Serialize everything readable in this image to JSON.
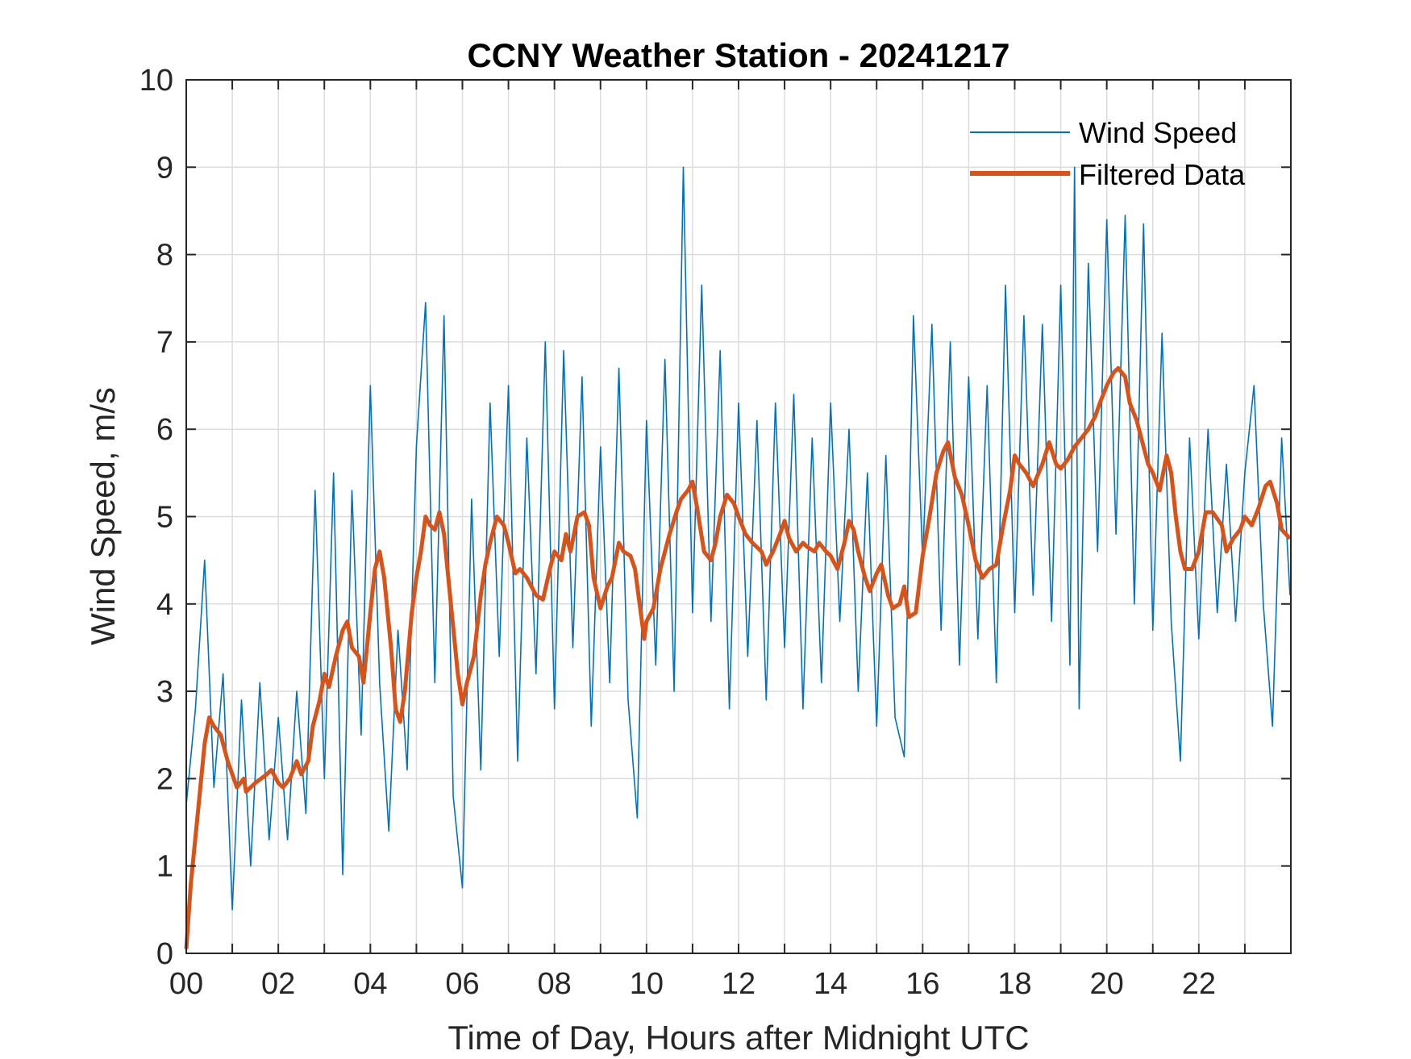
{
  "chart_data": {
    "type": "line",
    "title": "CCNY Weather Station - 20241217",
    "xlabel": "Time of Day, Hours after Midnight UTC",
    "ylabel": "Wind Speed, m/s",
    "xlim": [
      0,
      24
    ],
    "ylim": [
      0,
      10
    ],
    "grid": true,
    "legend_position": "top-right",
    "x_ticks": [
      0,
      2,
      4,
      6,
      8,
      10,
      12,
      14,
      16,
      18,
      20,
      22
    ],
    "x_tick_labels": [
      "00",
      "02",
      "04",
      "06",
      "08",
      "10",
      "12",
      "14",
      "16",
      "18",
      "20",
      "22"
    ],
    "y_ticks": [
      0,
      1,
      2,
      3,
      4,
      5,
      6,
      7,
      8,
      9,
      10
    ],
    "y_tick_labels": [
      "0",
      "1",
      "2",
      "3",
      "4",
      "5",
      "6",
      "7",
      "8",
      "9",
      "10"
    ],
    "series": [
      {
        "name": "Wind Speed",
        "color": "#0072BD",
        "x": [
          0,
          0.2,
          0.4,
          0.6,
          0.8,
          1.0,
          1.2,
          1.4,
          1.6,
          1.8,
          2.0,
          2.2,
          2.4,
          2.6,
          2.8,
          3.0,
          3.2,
          3.4,
          3.6,
          3.8,
          4.0,
          4.2,
          4.4,
          4.6,
          4.8,
          5.0,
          5.2,
          5.4,
          5.6,
          5.8,
          6.0,
          6.2,
          6.4,
          6.6,
          6.8,
          7.0,
          7.2,
          7.4,
          7.6,
          7.8,
          8.0,
          8.2,
          8.4,
          8.6,
          8.8,
          9.0,
          9.2,
          9.4,
          9.6,
          9.8,
          10.0,
          10.2,
          10.4,
          10.6,
          10.8,
          11.0,
          11.2,
          11.4,
          11.6,
          11.8,
          12.0,
          12.2,
          12.4,
          12.6,
          12.8,
          13.0,
          13.2,
          13.4,
          13.6,
          13.8,
          14.0,
          14.2,
          14.4,
          14.6,
          14.8,
          15.0,
          15.2,
          15.4,
          15.6,
          15.8,
          16.0,
          16.2,
          16.4,
          16.6,
          16.8,
          17.0,
          17.2,
          17.4,
          17.6,
          17.8,
          18.0,
          18.2,
          18.4,
          18.6,
          18.8,
          19.0,
          19.2,
          19.3,
          19.4,
          19.6,
          19.8,
          20.0,
          20.2,
          20.4,
          20.6,
          20.8,
          21.0,
          21.2,
          21.4,
          21.6,
          21.8,
          22.0,
          22.2,
          22.4,
          22.6,
          22.8,
          23.0,
          23.2,
          23.4,
          23.6,
          23.8,
          23.98
        ],
        "values": [
          1.7,
          2.8,
          4.5,
          1.9,
          3.2,
          0.5,
          2.9,
          1.0,
          3.1,
          1.3,
          2.7,
          1.3,
          3.0,
          1.6,
          5.3,
          2.0,
          5.5,
          0.9,
          5.3,
          2.5,
          6.5,
          3.1,
          1.4,
          3.7,
          2.1,
          5.8,
          7.45,
          3.1,
          7.3,
          1.8,
          0.75,
          5.2,
          2.1,
          6.3,
          3.4,
          6.5,
          2.2,
          5.9,
          3.2,
          7.0,
          2.8,
          6.9,
          3.5,
          6.6,
          2.6,
          5.8,
          3.1,
          6.7,
          2.9,
          1.55,
          6.1,
          3.3,
          6.8,
          3.0,
          9.0,
          3.9,
          7.65,
          3.8,
          6.9,
          2.8,
          6.3,
          3.4,
          6.1,
          2.9,
          6.3,
          3.5,
          6.4,
          2.8,
          5.9,
          3.1,
          6.3,
          3.8,
          6.0,
          3.0,
          5.5,
          2.6,
          5.7,
          2.7,
          2.25,
          7.3,
          4.5,
          7.2,
          3.7,
          7.0,
          3.3,
          6.6,
          3.6,
          6.5,
          3.1,
          7.65,
          3.9,
          7.3,
          4.1,
          7.2,
          3.8,
          7.65,
          3.3,
          9.0,
          2.8,
          7.9,
          4.6,
          8.4,
          4.8,
          8.45,
          4.0,
          8.35,
          3.7,
          7.1,
          3.8,
          2.2,
          5.9,
          3.6,
          6.0,
          3.9,
          5.6,
          3.8,
          5.5,
          6.5,
          4.0,
          2.6,
          5.9,
          4.1
        ]
      },
      {
        "name": "Filtered Data",
        "color": "#D95319",
        "x": [
          0,
          0.1,
          0.25,
          0.4,
          0.5,
          0.6,
          0.75,
          0.9,
          1.0,
          1.1,
          1.25,
          1.3,
          1.5,
          1.75,
          1.85,
          2.0,
          2.1,
          2.25,
          2.4,
          2.5,
          2.65,
          2.75,
          2.9,
          3.0,
          3.1,
          3.25,
          3.4,
          3.5,
          3.6,
          3.75,
          3.85,
          4.0,
          4.1,
          4.2,
          4.3,
          4.45,
          4.55,
          4.65,
          4.75,
          4.9,
          5.0,
          5.1,
          5.2,
          5.3,
          5.4,
          5.5,
          5.6,
          5.75,
          5.9,
          6.0,
          6.1,
          6.25,
          6.4,
          6.5,
          6.6,
          6.75,
          6.9,
          7.0,
          7.15,
          7.25,
          7.4,
          7.5,
          7.6,
          7.75,
          7.9,
          8.0,
          8.15,
          8.25,
          8.35,
          8.5,
          8.65,
          8.75,
          8.85,
          9.0,
          9.15,
          9.25,
          9.4,
          9.5,
          9.65,
          9.75,
          9.85,
          9.95,
          10.0,
          10.15,
          10.3,
          10.5,
          10.65,
          10.75,
          10.9,
          11.0,
          11.1,
          11.25,
          11.4,
          11.5,
          11.6,
          11.75,
          11.9,
          12.0,
          12.15,
          12.3,
          12.5,
          12.6,
          12.75,
          12.9,
          13.0,
          13.1,
          13.25,
          13.4,
          13.5,
          13.65,
          13.75,
          13.9,
          14.0,
          14.15,
          14.3,
          14.4,
          14.5,
          14.6,
          14.75,
          14.85,
          15.0,
          15.1,
          15.25,
          15.35,
          15.5,
          15.6,
          15.7,
          15.85,
          16.0,
          16.15,
          16.3,
          16.45,
          16.55,
          16.7,
          16.85,
          17.0,
          17.15,
          17.3,
          17.45,
          17.6,
          17.75,
          17.9,
          18.0,
          18.1,
          18.25,
          18.4,
          18.6,
          18.75,
          18.9,
          19.0,
          19.15,
          19.3,
          19.45,
          19.6,
          19.75,
          19.85,
          20.0,
          20.15,
          20.25,
          20.4,
          20.5,
          20.65,
          20.8,
          20.9,
          21.0,
          21.15,
          21.3,
          21.4,
          21.5,
          21.6,
          21.7,
          21.85,
          22.0,
          22.15,
          22.3,
          22.5,
          22.6,
          22.75,
          22.9,
          23.0,
          23.15,
          23.3,
          23.45,
          23.55,
          23.7,
          23.8,
          23.98
        ],
        "values": [
          0.05,
          0.8,
          1.6,
          2.4,
          2.7,
          2.6,
          2.5,
          2.2,
          2.05,
          1.9,
          2.0,
          1.85,
          1.95,
          2.05,
          2.1,
          1.95,
          1.9,
          2.0,
          2.2,
          2.05,
          2.2,
          2.6,
          2.9,
          3.2,
          3.05,
          3.4,
          3.7,
          3.8,
          3.5,
          3.4,
          3.1,
          3.9,
          4.4,
          4.6,
          4.3,
          3.5,
          2.8,
          2.65,
          3.0,
          3.9,
          4.3,
          4.6,
          5.0,
          4.9,
          4.85,
          5.05,
          4.8,
          4.0,
          3.2,
          2.85,
          3.1,
          3.4,
          4.1,
          4.45,
          4.7,
          5.0,
          4.9,
          4.7,
          4.35,
          4.4,
          4.3,
          4.2,
          4.1,
          4.05,
          4.4,
          4.6,
          4.5,
          4.8,
          4.6,
          5.0,
          5.05,
          4.9,
          4.3,
          3.95,
          4.2,
          4.3,
          4.7,
          4.6,
          4.55,
          4.4,
          4.0,
          3.6,
          3.8,
          3.95,
          4.4,
          4.8,
          5.05,
          5.2,
          5.3,
          5.4,
          5.1,
          4.6,
          4.5,
          4.7,
          5.0,
          5.25,
          5.15,
          5.0,
          4.8,
          4.7,
          4.6,
          4.45,
          4.6,
          4.8,
          4.95,
          4.75,
          4.6,
          4.7,
          4.65,
          4.6,
          4.7,
          4.6,
          4.55,
          4.4,
          4.7,
          4.95,
          4.85,
          4.6,
          4.3,
          4.15,
          4.35,
          4.45,
          4.1,
          3.95,
          4.0,
          4.2,
          3.85,
          3.9,
          4.55,
          5.0,
          5.5,
          5.75,
          5.85,
          5.45,
          5.25,
          4.9,
          4.5,
          4.3,
          4.4,
          4.45,
          4.9,
          5.3,
          5.7,
          5.6,
          5.5,
          5.35,
          5.6,
          5.85,
          5.6,
          5.55,
          5.65,
          5.8,
          5.9,
          6.0,
          6.15,
          6.3,
          6.5,
          6.65,
          6.7,
          6.6,
          6.3,
          6.1,
          5.8,
          5.6,
          5.5,
          5.3,
          5.7,
          5.5,
          5.0,
          4.6,
          4.4,
          4.4,
          4.6,
          5.05,
          5.05,
          4.9,
          4.6,
          4.75,
          4.85,
          5.0,
          4.9,
          5.1,
          5.35,
          5.4,
          5.15,
          4.85,
          4.75
        ]
      }
    ]
  }
}
